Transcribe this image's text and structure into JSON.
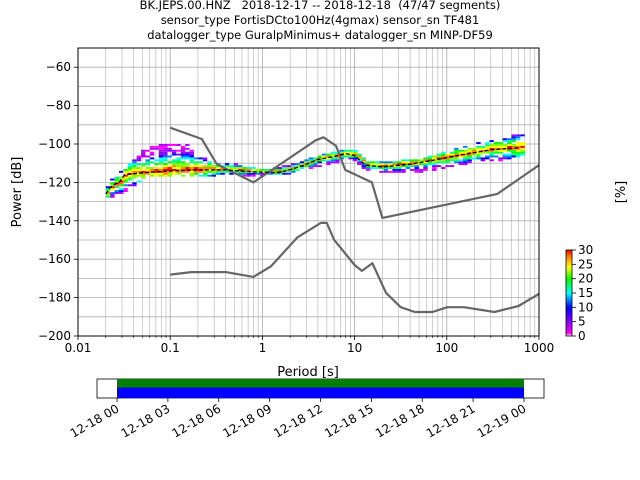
{
  "titles": {
    "line1": "BK.JEPS.00.HNZ   2018-12-17 -- 2018-12-18  (47/47 segments)",
    "line2": "sensor_type FortisDCto100Hz(4gmax) sensor_sn TF481",
    "line3": "datalogger_type GuralpMinimus+ datalogger_sn MINP-DF59"
  },
  "colors": {
    "noise_model": "#666666",
    "mode_line": "#000000",
    "grid": "#b0b0b0",
    "coverage_green": "#008000",
    "coverage_blue": "#0000ff"
  },
  "chart_data": [
    {
      "type": "heatmap",
      "xlabel": "Period [s]",
      "ylabel": "Power [dB]",
      "xscale": "log",
      "xlim": [
        0.01,
        1000
      ],
      "ylim": [
        -200,
        -50
      ],
      "grid": true,
      "x_tick_labels": [
        "0.01",
        "0.1",
        "1",
        "10",
        "100",
        "1000"
      ],
      "y_tick_labels": [
        "−200",
        "−180",
        "−160",
        "−140",
        "−120",
        "−100",
        "−80",
        "−60"
      ],
      "series": [
        {
          "kind": "noise_model_high",
          "x": [
            0.1,
            0.22,
            0.32,
            0.8,
            3.8,
            4.6,
            6.3,
            7.9,
            15.4,
            20,
            354,
            1000
          ],
          "y": [
            -91.5,
            -97.4,
            -110.5,
            -120,
            -98,
            -96.5,
            -101,
            -113.5,
            -120,
            -138.5,
            -126,
            -111
          ]
        },
        {
          "kind": "noise_model_low",
          "x": [
            0.1,
            0.17,
            0.4,
            0.8,
            1.24,
            2.4,
            4.3,
            5,
            6,
            10,
            12,
            15.6,
            21.9,
            31.6,
            45,
            70,
            101,
            154,
            328,
            600,
            1000
          ],
          "y": [
            -168,
            -166.7,
            -166.7,
            -169.2,
            -163.7,
            -148.6,
            -141.1,
            -141.1,
            -149.9,
            -163,
            -166.1,
            -162.1,
            -177.5,
            -185,
            -187.5,
            -187.5,
            -185,
            -185,
            -187.5,
            -184.4,
            -178
          ]
        },
        {
          "kind": "mode",
          "x": [
            0.02,
            0.022,
            0.025,
            0.028,
            0.032,
            0.05,
            0.1,
            0.2,
            0.4,
            0.8,
            1.5,
            2.5,
            4,
            6,
            8,
            10,
            13,
            20,
            40,
            80,
            150,
            300,
            600
          ],
          "y": [
            -126,
            -123,
            -121,
            -120,
            -116,
            -115,
            -114,
            -113.5,
            -113.5,
            -114.5,
            -115,
            -112,
            -108,
            -106.5,
            -105,
            -106,
            -111,
            -112,
            -110.5,
            -108,
            -105.5,
            -103,
            -102
          ]
        },
        {
          "kind": "probability_band",
          "x": [
            0.02,
            0.03,
            0.05,
            0.08,
            0.1,
            0.15,
            0.2,
            0.3,
            0.5,
            1,
            2,
            4,
            8,
            10,
            13,
            20,
            50,
            100,
            200,
            400,
            700
          ],
          "upper": [
            -121,
            -113,
            -103,
            -100,
            -100,
            -101,
            -105,
            -110,
            -111,
            -114,
            -111,
            -106,
            -103,
            -104,
            -109,
            -110,
            -108,
            -104,
            -100,
            -98,
            -93
          ],
          "lower": [
            -128,
            -125,
            -117,
            -117,
            -117,
            -117,
            -117,
            -116,
            -116,
            -117,
            -115,
            -111,
            -108,
            -109,
            -114,
            -115,
            -114,
            -112,
            -109,
            -108,
            -106
          ]
        }
      ]
    },
    {
      "type": "bar",
      "colorbar_label": "[%]",
      "colorbar_ticks": [
        "0",
        "5",
        "10",
        "15",
        "20",
        "25",
        "30"
      ],
      "range": [
        0,
        30
      ]
    },
    {
      "type": "bar",
      "x_tick_labels": [
        "12-18 00",
        "12-18 03",
        "12-18 06",
        "12-18 09",
        "12-18 12",
        "12-18 15",
        "12-18 18",
        "12-18 21",
        "12-19 00"
      ],
      "coverage_start_hour": 0,
      "coverage_end_hour": 24,
      "row_colors": [
        "green",
        "blue"
      ]
    }
  ]
}
